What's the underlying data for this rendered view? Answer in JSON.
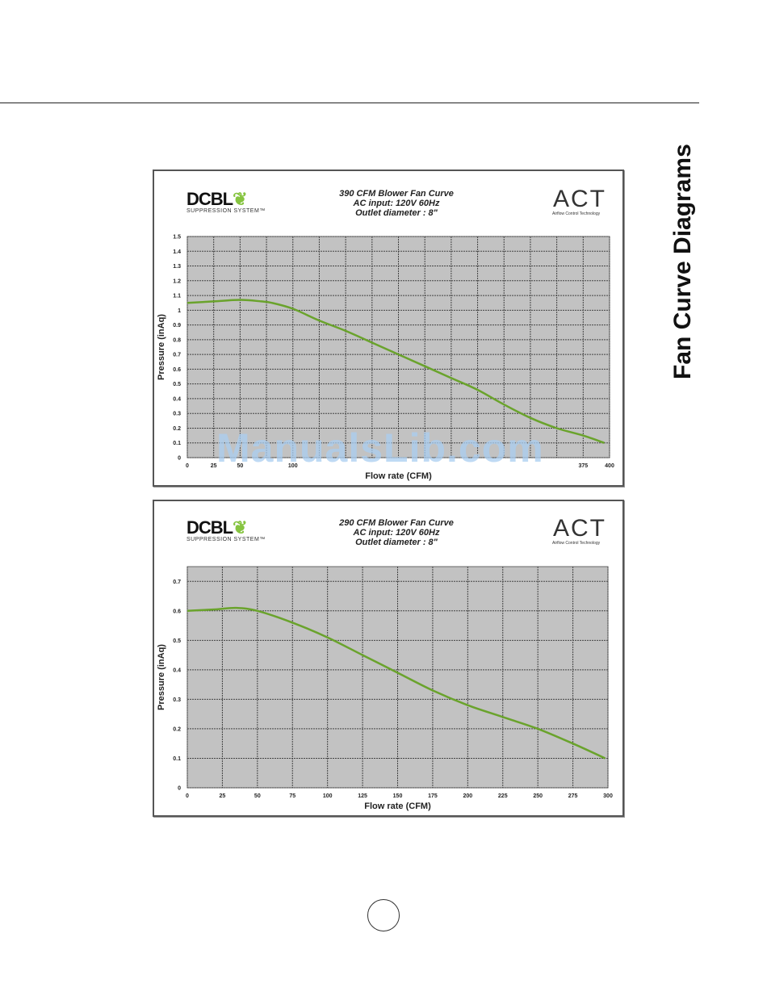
{
  "page": {
    "side_title": "Fan Curve Diagrams",
    "watermark": "ManualsLib.com"
  },
  "logos": {
    "dcbl_text": "DCBL",
    "dcbl_sub": "SUPPRESSION SYSTEM™",
    "act_text": "ACT",
    "act_sub": "Airflow Control Technology"
  },
  "chart_data": [
    {
      "type": "line",
      "title_lines": [
        "390 CFM Blower Fan Curve",
        "AC input: 120V  60Hz",
        "Outlet diameter : 8\""
      ],
      "xlabel": "Flow rate (CFM)",
      "ylabel": "Pressure (inAq)",
      "xlim": [
        0,
        400
      ],
      "ylim": [
        0,
        1.5
      ],
      "x_ticks": [
        0,
        25,
        50,
        75,
        100,
        125,
        150,
        175,
        200,
        225,
        250,
        275,
        300,
        325,
        350,
        375,
        400
      ],
      "x_tick_labels": [
        "0",
        "25",
        "50",
        "",
        "100",
        "",
        "",
        "",
        "",
        "",
        "",
        "",
        "",
        "",
        "",
        "375",
        "400"
      ],
      "y_ticks": [
        0,
        0.1,
        0.2,
        0.3,
        0.4,
        0.5,
        0.6,
        0.7,
        0.8,
        0.9,
        1,
        1.1,
        1.2,
        1.3,
        1.4,
        1.5
      ],
      "y_tick_labels": [
        "0",
        "0.1",
        "0.2",
        "0.3",
        "0.4",
        "0.5",
        "0.6",
        "0.7",
        "0.8",
        "0.9",
        "1",
        "1.1",
        "1.2",
        "1.3",
        "1.4",
        "1.5"
      ],
      "grid": true,
      "line_color": "#6aa32c",
      "plot_bg": "#c2c2c2",
      "series": [
        {
          "x": [
            0,
            25,
            50,
            70,
            80,
            100,
            125,
            150,
            175,
            200,
            225,
            250,
            275,
            300,
            325,
            350,
            375,
            395
          ],
          "values": [
            1.05,
            1.06,
            1.07,
            1.06,
            1.05,
            1.01,
            0.93,
            0.86,
            0.78,
            0.7,
            0.62,
            0.54,
            0.46,
            0.36,
            0.27,
            0.2,
            0.15,
            0.1
          ]
        }
      ]
    },
    {
      "type": "line",
      "title_lines": [
        "290 CFM Blower Fan Curve",
        "AC input: 120V  60Hz",
        "Outlet diameter : 8\""
      ],
      "xlabel": "Flow rate (CFM)",
      "ylabel": "Pressure (inAq)",
      "xlim": [
        0,
        300
      ],
      "ylim": [
        0,
        0.75
      ],
      "x_ticks": [
        0,
        25,
        50,
        75,
        100,
        125,
        150,
        175,
        200,
        225,
        250,
        275,
        300
      ],
      "x_tick_labels": [
        "0",
        "25",
        "50",
        "75",
        "100",
        "125",
        "150",
        "175",
        "200",
        "225",
        "250",
        "275",
        "300"
      ],
      "y_ticks": [
        0,
        0.1,
        0.2,
        0.3,
        0.4,
        0.5,
        0.6,
        0.7
      ],
      "y_tick_labels": [
        "0",
        "0.1",
        "0.2",
        "0.3",
        "0.4",
        "0.5",
        "0.6",
        "0.7"
      ],
      "grid": true,
      "line_color": "#6aa32c",
      "plot_bg": "#c2c2c2",
      "series": [
        {
          "x": [
            0,
            20,
            35,
            50,
            75,
            100,
            125,
            150,
            175,
            200,
            225,
            250,
            275,
            298
          ],
          "values": [
            0.6,
            0.605,
            0.61,
            0.6,
            0.56,
            0.51,
            0.45,
            0.39,
            0.33,
            0.28,
            0.24,
            0.2,
            0.15,
            0.1
          ]
        }
      ]
    }
  ]
}
